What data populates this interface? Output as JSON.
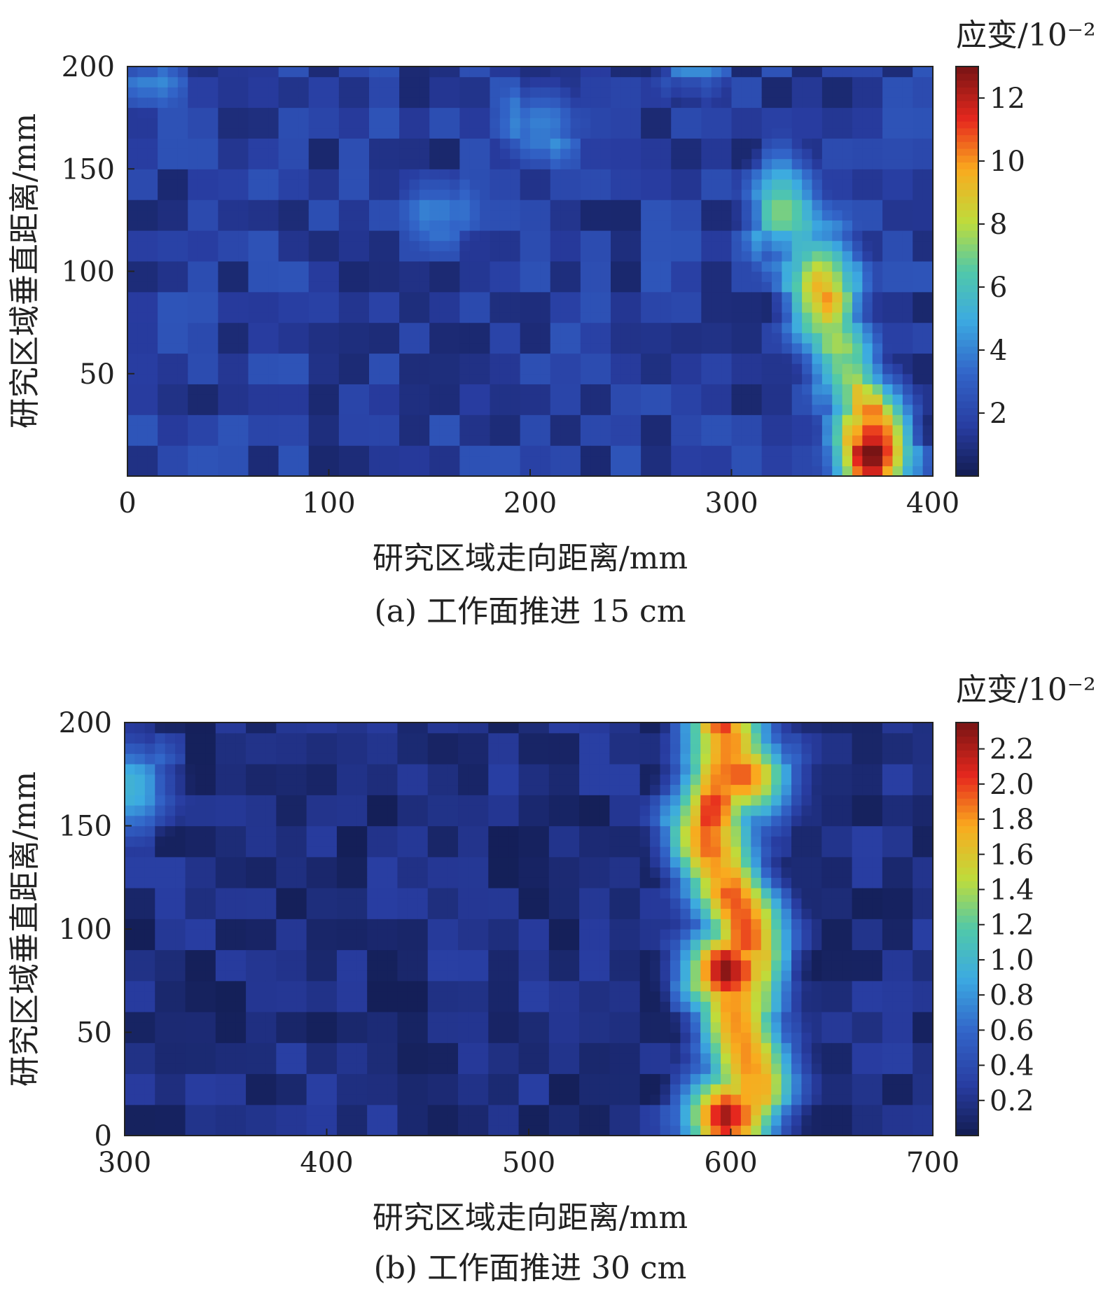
{
  "chart_data": [
    {
      "type": "heatmap",
      "caption": "(a) 工作面推进 15 cm",
      "xlabel": "研究区域走向距离/mm",
      "ylabel": "研究区域垂直距离/mm",
      "colorbar_label": "应变/10⁻²",
      "xlim": [
        0,
        400
      ],
      "ylim": [
        0,
        200
      ],
      "x_ticks": [
        0,
        100,
        200,
        300,
        400
      ],
      "y_ticks": [
        50,
        100,
        150,
        200
      ],
      "colorbar_range": [
        0,
        13
      ],
      "colorbar_ticks": [
        2,
        4,
        6,
        8,
        10,
        12
      ],
      "colormap": "jet",
      "hotspots": [
        {
          "x": 370,
          "y": 15,
          "value": 12.7
        },
        {
          "x": 345,
          "y": 90,
          "value": 9.5
        },
        {
          "x": 325,
          "y": 130,
          "value": 6.5
        },
        {
          "x": 205,
          "y": 172,
          "value": 4.2
        },
        {
          "x": 155,
          "y": 130,
          "value": 3.5
        },
        {
          "x": 280,
          "y": 200,
          "value": 3.5
        },
        {
          "x": 10,
          "y": 200,
          "value": 3.8
        }
      ],
      "background_value": 1.5
    },
    {
      "type": "heatmap",
      "caption": "(b) 工作面推进 30 cm",
      "xlabel": "研究区域走向距离/mm",
      "ylabel": "研究区域垂直距离/mm",
      "colorbar_label": "应变/10⁻²",
      "xlim": [
        300,
        700
      ],
      "ylim": [
        0,
        200
      ],
      "x_ticks": [
        300,
        400,
        500,
        600,
        700
      ],
      "y_ticks": [
        0,
        50,
        100,
        150,
        200
      ],
      "colorbar_range": [
        0,
        2.35
      ],
      "colorbar_ticks": [
        "0.2",
        "0.4",
        "0.6",
        "0.8",
        "1.0",
        "1.2",
        "1.4",
        "1.6",
        "1.8",
        "2.0",
        "2.2"
      ],
      "colormap": "jet",
      "band": {
        "x_center": 600,
        "value_max": 2.3
      },
      "hotspots": [
        {
          "x": 600,
          "y": 80,
          "value": 2.3
        },
        {
          "x": 600,
          "y": 10,
          "value": 2.2
        },
        {
          "x": 605,
          "y": 175,
          "value": 1.9
        },
        {
          "x": 302,
          "y": 170,
          "value": 0.9
        }
      ],
      "background_value": 0.15
    }
  ]
}
